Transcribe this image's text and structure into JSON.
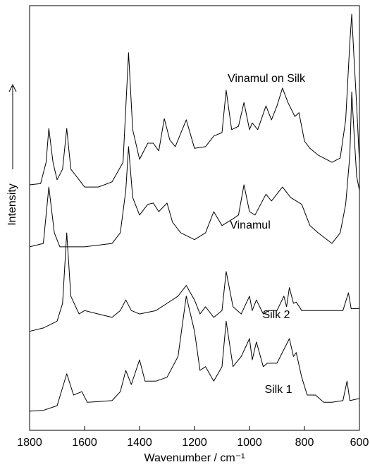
{
  "chart_data": {
    "type": "line",
    "xlabel": "Wavenumber / cm⁻¹",
    "ylabel": "Intensity",
    "xlim": [
      1800,
      600
    ],
    "ylim": [
      0,
      100
    ],
    "xticks": [
      1800,
      1600,
      1400,
      1200,
      1000,
      800,
      600
    ],
    "series": [
      {
        "name": "Silk 1",
        "color": "#000000",
        "x": [
          1800,
          1750,
          1700,
          1665,
          1640,
          1610,
          1590,
          1500,
          1470,
          1450,
          1430,
          1400,
          1380,
          1340,
          1300,
          1260,
          1230,
          1200,
          1180,
          1160,
          1130,
          1100,
          1085,
          1060,
          1030,
          1000,
          990,
          975,
          950,
          935,
          900,
          855,
          840,
          830,
          810,
          790,
          760,
          730,
          700,
          660,
          645,
          635,
          600
        ],
        "values": [
          4.5,
          4.7,
          5.8,
          13.3,
          8.3,
          9.1,
          6.6,
          7.0,
          9.1,
          14.1,
          10.8,
          16.6,
          11.6,
          11.6,
          12.5,
          17.4,
          31.6,
          23.3,
          14.1,
          15.0,
          11.6,
          15.0,
          25.7,
          15.0,
          17.4,
          21.6,
          16.6,
          20.8,
          15.0,
          15.8,
          15.8,
          21.6,
          17.4,
          18.3,
          12.5,
          8.3,
          8.3,
          6.6,
          6.6,
          7.0,
          11.6,
          7.0,
          7.5
        ]
      },
      {
        "name": "Silk 2",
        "color": "#000000",
        "x": [
          1800,
          1750,
          1700,
          1680,
          1665,
          1650,
          1620,
          1600,
          1550,
          1500,
          1470,
          1450,
          1430,
          1400,
          1340,
          1300,
          1260,
          1230,
          1200,
          1180,
          1160,
          1130,
          1100,
          1085,
          1060,
          1030,
          1000,
          990,
          975,
          950,
          930,
          900,
          875,
          865,
          855,
          840,
          830,
          810,
          760,
          700,
          660,
          640,
          630,
          600
        ],
        "values": [
          23.3,
          24.1,
          25.7,
          29.9,
          46.5,
          31.6,
          27.4,
          28.2,
          27.4,
          26.6,
          28.2,
          30.7,
          28.2,
          27.4,
          28.2,
          29.9,
          31.6,
          34.1,
          30.7,
          27.4,
          29.1,
          26.6,
          28.2,
          37.4,
          29.1,
          27.4,
          31.6,
          28.2,
          30.7,
          27.4,
          28.2,
          28.2,
          31.6,
          29.1,
          33.6,
          29.9,
          30.2,
          28.2,
          28.2,
          28.2,
          28.2,
          32.4,
          28.6,
          28.7
        ]
      },
      {
        "name": "Vinamul",
        "color": "#000000",
        "x": [
          1800,
          1750,
          1730,
          1710,
          1690,
          1600,
          1500,
          1470,
          1450,
          1440,
          1425,
          1400,
          1370,
          1350,
          1330,
          1300,
          1280,
          1250,
          1200,
          1160,
          1130,
          1100,
          1060,
          1040,
          1020,
          1000,
          980,
          940,
          920,
          880,
          850,
          810,
          780,
          750,
          700,
          670,
          650,
          635,
          628,
          618,
          610,
          600
        ],
        "values": [
          43.2,
          44.0,
          57.3,
          46.5,
          43.2,
          43.2,
          44.0,
          46.5,
          56.5,
          66.8,
          54.8,
          50.7,
          53.2,
          53.5,
          51.5,
          53.5,
          49.0,
          46.5,
          44.9,
          46.5,
          51.5,
          48.2,
          49.8,
          50.7,
          57.8,
          51.5,
          50.7,
          55.6,
          54.0,
          57.3,
          54.8,
          53.2,
          48.2,
          46.5,
          44.0,
          46.5,
          53.2,
          64.8,
          79.7,
          68.1,
          59.8,
          56.5
        ]
      },
      {
        "name": "Vinamul on Silk",
        "color": "#000000",
        "x": [
          1800,
          1760,
          1740,
          1730,
          1715,
          1700,
          1680,
          1665,
          1650,
          1620,
          1600,
          1550,
          1500,
          1460,
          1440,
          1425,
          1400,
          1370,
          1350,
          1330,
          1310,
          1290,
          1270,
          1230,
          1200,
          1160,
          1130,
          1100,
          1085,
          1065,
          1040,
          1020,
          1000,
          990,
          970,
          940,
          920,
          900,
          880,
          860,
          835,
          820,
          800,
          780,
          750,
          700,
          670,
          650,
          635,
          628,
          620,
          610,
          600
        ],
        "values": [
          57.8,
          58.1,
          63.1,
          71.1,
          63.1,
          59.0,
          61.5,
          71.1,
          61.5,
          59.0,
          57.3,
          57.3,
          58.5,
          63.1,
          88.9,
          70.8,
          63.8,
          67.6,
          67.6,
          65.8,
          73.4,
          68.4,
          66.8,
          73.1,
          66.4,
          66.8,
          69.3,
          70.1,
          80.1,
          70.8,
          71.6,
          77.2,
          70.8,
          72.4,
          70.8,
          76.4,
          73.1,
          76.4,
          80.6,
          77.2,
          73.9,
          74.8,
          68.1,
          66.4,
          64.8,
          63.1,
          64.1,
          73.1,
          91.4,
          98.0,
          88.0,
          76.4,
          63.1
        ]
      }
    ]
  }
}
